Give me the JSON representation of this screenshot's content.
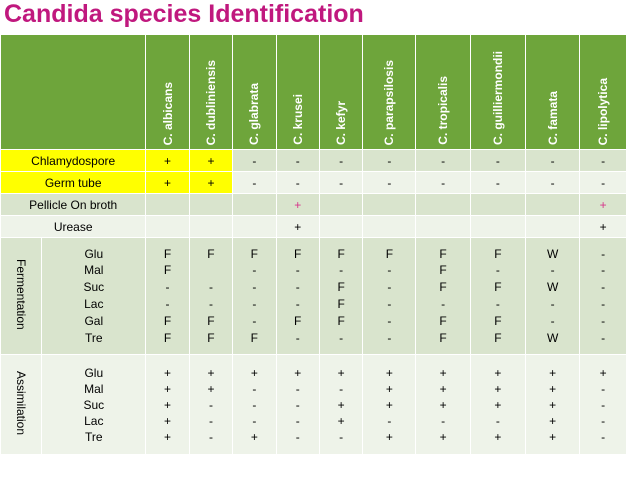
{
  "title": "Candida species Identification",
  "species": [
    "C. albicans",
    "C. dubliniensis",
    "C. glabrata",
    "C. krusei",
    "C. kefyr",
    "C. parapsilosis",
    "C. tropicalis",
    "C. guilliermondii",
    "C. famata",
    "C. lipolytica"
  ],
  "simple_rows": [
    {
      "label": "Chlamydospore",
      "values": [
        "+",
        "+",
        "-",
        "-",
        "-",
        "-",
        "-",
        "-",
        "-",
        "-"
      ]
    },
    {
      "label": "Germ tube",
      "values": [
        "+",
        "+",
        "-",
        "-",
        "-",
        "-",
        "-",
        "-",
        "-",
        "-"
      ]
    },
    {
      "label": "Pellicle On broth",
      "values": [
        "",
        "",
        "",
        "+",
        "",
        "",
        "",
        "",
        "",
        "+"
      ]
    },
    {
      "label": "Urease",
      "values": [
        "",
        "",
        "",
        "+",
        "",
        "",
        "",
        "",
        "",
        "+"
      ]
    }
  ],
  "fermentation": {
    "group_label": "Fermentation",
    "sugars": [
      "Glu",
      "Mal",
      "Suc",
      "Lac",
      "Gal",
      "Tre"
    ],
    "columns": [
      [
        "F",
        "F",
        "-",
        "-",
        "F",
        "F"
      ],
      [
        "F",
        "",
        "-",
        "-",
        "F",
        "F"
      ],
      [
        "F",
        "-",
        "-",
        "-",
        "-",
        "F"
      ],
      [
        "F",
        "-",
        "-",
        "-",
        "F",
        "-"
      ],
      [
        "F",
        "-",
        "F",
        "F",
        "F",
        "-"
      ],
      [
        "F",
        "-",
        "-",
        "-",
        "-",
        "-"
      ],
      [
        "F",
        "F",
        "F",
        "-",
        "F",
        "F"
      ],
      [
        "F",
        "-",
        "F",
        "-",
        "F",
        "F"
      ],
      [
        "W",
        "-",
        "W",
        "-",
        "-",
        "W"
      ],
      [
        "-",
        "-",
        "-",
        "-",
        "-",
        "-"
      ]
    ]
  },
  "assimilation": {
    "group_label": "Assimilation",
    "sugars": [
      "Glu",
      "Mal",
      "Suc",
      "Lac",
      "Tre"
    ],
    "columns": [
      [
        "+",
        "+",
        "+",
        "+",
        "+"
      ],
      [
        "+",
        "+",
        "-",
        "-",
        "-"
      ],
      [
        "+",
        "-",
        "-",
        "-",
        "+"
      ],
      [
        "+",
        "-",
        "-",
        "-",
        "-"
      ],
      [
        "+",
        "-",
        "+",
        "+",
        "-"
      ],
      [
        "+",
        "+",
        "+",
        "-",
        "+"
      ],
      [
        "+",
        "+",
        "+",
        "-",
        "+"
      ],
      [
        "+",
        "+",
        "+",
        "-",
        "+"
      ],
      [
        "+",
        "+",
        "+",
        "+",
        "+"
      ],
      [
        "+",
        "-",
        "-",
        "-",
        "-"
      ]
    ]
  },
  "colors": {
    "title": "#c0187e",
    "header": "#6ea53b",
    "row_dark": "#d9e4cd",
    "row_light": "#eef3e9",
    "highlight": "#ffff00",
    "plus_accent": "#d6348a"
  }
}
